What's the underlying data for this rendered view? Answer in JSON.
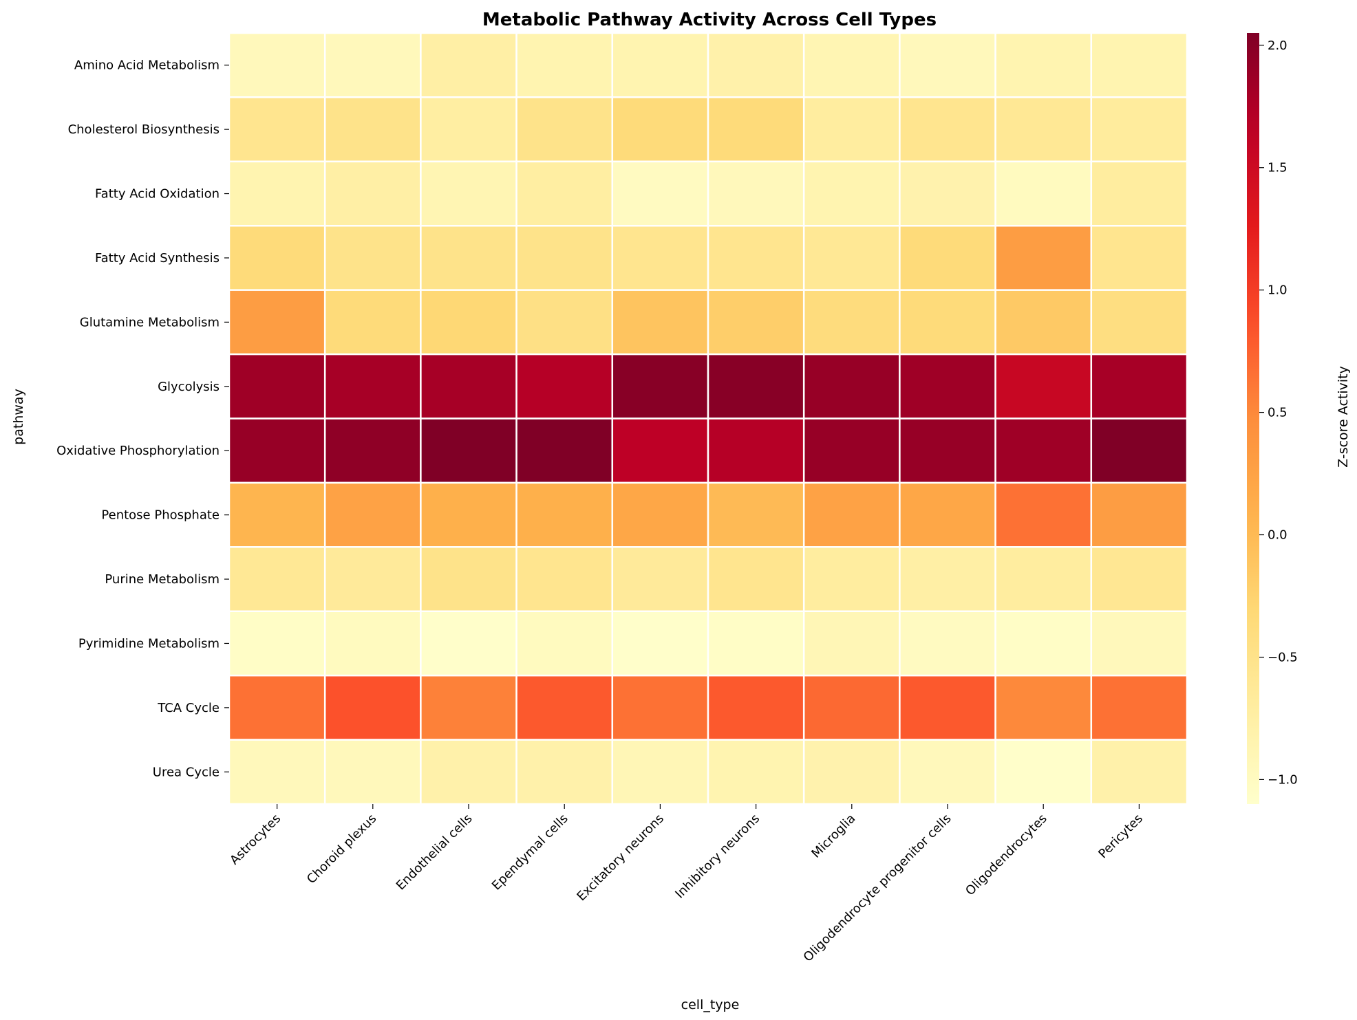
{
  "chart_data": {
    "type": "heatmap",
    "title": "Metabolic Pathway Activity Across Cell Types",
    "xlabel": "cell_type",
    "ylabel": "pathway",
    "x_categories": [
      "Astrocytes",
      "Choroid plexus",
      "Endothelial cells",
      "Ependymal cells",
      "Excitatory neurons",
      "Inhibitory neurons",
      "Microglia",
      "Oligodendrocyte progenitor cells",
      "Oligodendrocytes",
      "Pericytes"
    ],
    "y_categories": [
      "Amino Acid Metabolism",
      "Cholesterol Biosynthesis",
      "Fatty Acid Oxidation",
      "Fatty Acid Synthesis",
      "Glutamine Metabolism",
      "Glycolysis",
      "Oxidative Phosphorylation",
      "Pentose Phosphate",
      "Purine Metabolism",
      "Pyrimidine Metabolism",
      "TCA Cycle",
      "Urea Cycle"
    ],
    "values": [
      [
        -0.95,
        -0.95,
        -0.75,
        -0.85,
        -0.85,
        -0.8,
        -0.88,
        -0.95,
        -0.85,
        -0.85
      ],
      [
        -0.55,
        -0.5,
        -0.72,
        -0.5,
        -0.35,
        -0.35,
        -0.7,
        -0.55,
        -0.6,
        -0.68
      ],
      [
        -0.85,
        -0.75,
        -0.88,
        -0.72,
        -1.0,
        -0.95,
        -0.85,
        -0.82,
        -0.98,
        -0.7
      ],
      [
        -0.35,
        -0.5,
        -0.5,
        -0.5,
        -0.55,
        -0.55,
        -0.6,
        -0.35,
        0.3,
        -0.55
      ],
      [
        0.3,
        -0.35,
        -0.3,
        -0.45,
        -0.1,
        -0.2,
        -0.38,
        -0.35,
        -0.15,
        -0.42
      ],
      [
        1.85,
        1.8,
        1.8,
        1.7,
        2.0,
        2.0,
        1.9,
        1.85,
        1.55,
        1.8
      ],
      [
        1.9,
        1.95,
        2.05,
        2.05,
        1.65,
        1.7,
        1.9,
        1.9,
        1.85,
        2.05
      ],
      [
        0.05,
        0.25,
        0.1,
        0.1,
        0.2,
        0.0,
        0.25,
        0.2,
        0.65,
        0.3
      ],
      [
        -0.6,
        -0.65,
        -0.5,
        -0.55,
        -0.65,
        -0.55,
        -0.7,
        -0.75,
        -0.7,
        -0.58
      ],
      [
        -1.05,
        -0.98,
        -1.08,
        -0.98,
        -1.08,
        -1.05,
        -0.9,
        -1.0,
        -1.05,
        -0.95
      ],
      [
        0.65,
        0.85,
        0.55,
        0.8,
        0.65,
        0.8,
        0.7,
        0.8,
        0.5,
        0.65
      ],
      [
        -0.95,
        -0.95,
        -0.8,
        -0.8,
        -0.9,
        -0.85,
        -0.82,
        -0.95,
        -1.08,
        -0.8
      ]
    ],
    "colorbar": {
      "label": "Z-score Activity",
      "colormap": "YlOrRd",
      "range": [
        -1.1,
        2.05
      ],
      "ticks": [
        2.0,
        1.5,
        1.0,
        0.5,
        0.0,
        -0.5,
        -1.0
      ],
      "tick_labels": [
        "2.0",
        "1.5",
        "1.0",
        "0.5",
        "0.0",
        "−0.5",
        "−1.0"
      ]
    },
    "grid": false,
    "cell_border_color": "#ffffff"
  }
}
